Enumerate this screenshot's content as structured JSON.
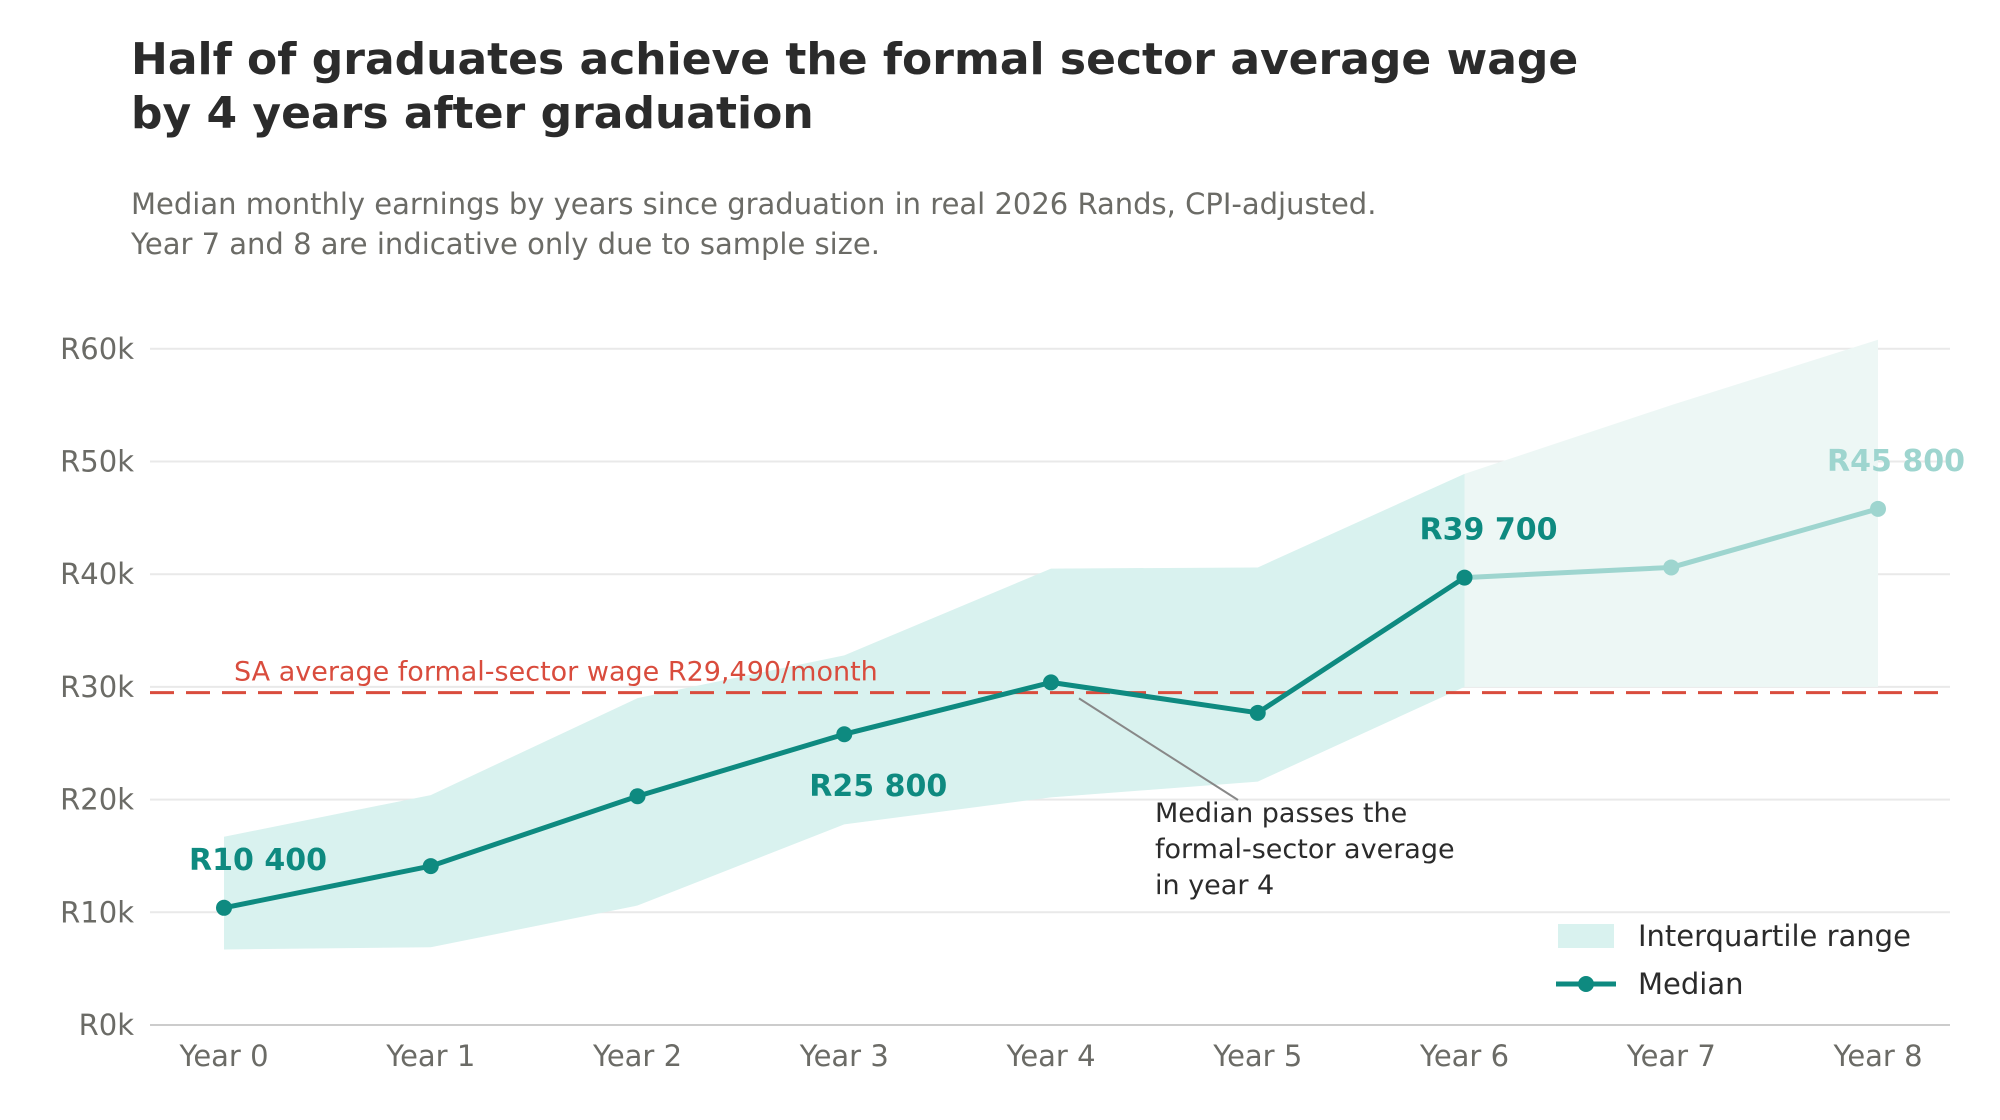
{
  "chart_data": {
    "type": "line",
    "title": [
      "Half of graduates achieve the formal sector average wage",
      "by 4 years after graduation"
    ],
    "subtitle": [
      "Median monthly earnings by years since graduation in real 2026 Rands, CPI-adjusted.",
      "Year 7 and 8 are indicative only due to sample size."
    ],
    "categories": [
      "Year 0",
      "Year 1",
      "Year 2",
      "Year 3",
      "Year 4",
      "Year 5",
      "Year 6",
      "Year 7",
      "Year 8"
    ],
    "y_ticks": [
      0,
      10000,
      20000,
      30000,
      40000,
      50000,
      60000
    ],
    "y_tick_labels": [
      "R0k",
      "R10k",
      "R20k",
      "R30k",
      "R40k",
      "R50k",
      "R60k"
    ],
    "ylim": [
      0,
      61000
    ],
    "grid": true,
    "series": [
      {
        "name": "Median",
        "values": [
          10400,
          14100,
          20300,
          25800,
          30400,
          27700,
          39700,
          40600,
          45800
        ],
        "indicative_from_index": 6
      }
    ],
    "interquartile_range": {
      "name": "Interquartile range",
      "lower": [
        6700,
        6900,
        10600,
        17800,
        20200,
        21600,
        30000,
        30000,
        30000
      ],
      "upper": [
        16700,
        20400,
        29000,
        32800,
        40500,
        40600,
        48900,
        55000,
        60800
      ],
      "indicative_from_index": 6
    },
    "data_labels": [
      {
        "index": 0,
        "text": "R10 400",
        "position": "above"
      },
      {
        "index": 3,
        "text": "R25 800",
        "position": "below"
      },
      {
        "index": 6,
        "text": "R39 700",
        "position": "above"
      },
      {
        "index": 8,
        "text": "R45 800",
        "position": "above"
      }
    ],
    "reference_line": {
      "value": 29490,
      "label": "SA average formal-sector wage  R29,490/month"
    },
    "annotation": {
      "index": 4,
      "lines": [
        "Median passes the",
        "formal-sector average",
        "in year 4"
      ]
    },
    "legend": {
      "placement": "bottom-right",
      "items": [
        "Interquartile range",
        "Median"
      ]
    },
    "colors": {
      "median": "#0e8a80",
      "median_indicative": "#9ed5cf",
      "iqr": "#d9f2ef",
      "iqr_indicative": "#edf7f5",
      "reference": "#d94c3d",
      "grid": "#e9e9e9",
      "axis": "#cccccc",
      "annotation_line": "#888888"
    }
  }
}
